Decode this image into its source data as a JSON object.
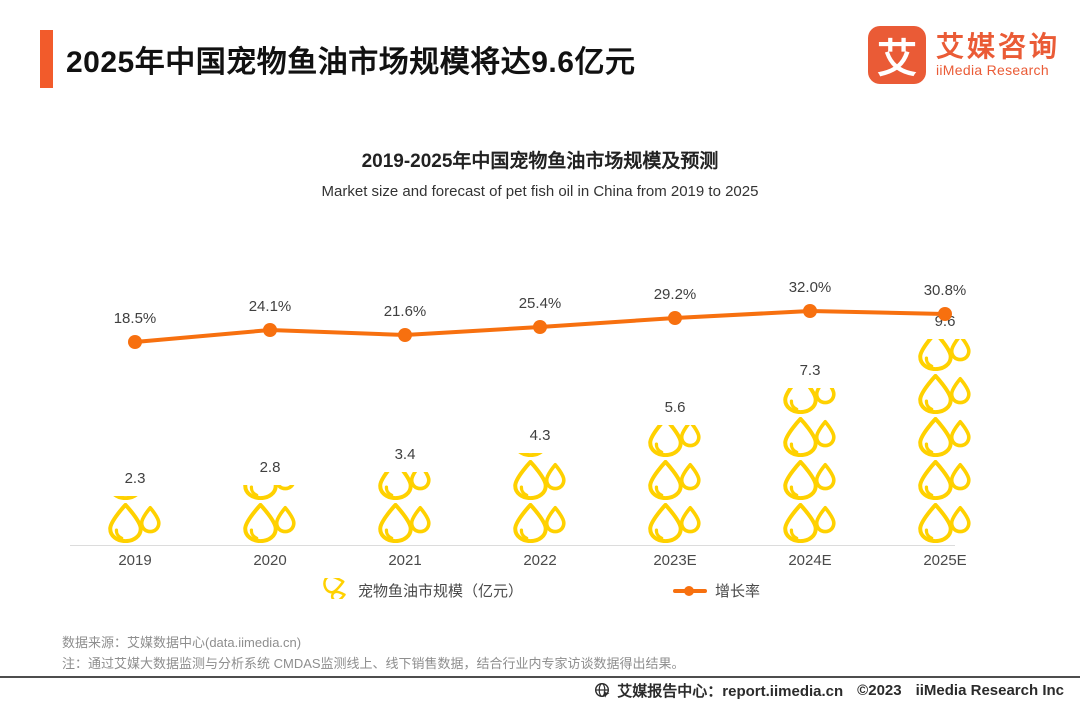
{
  "header": {
    "title": "2025年中国宠物鱼油市场规模将达9.6亿元"
  },
  "logo": {
    "glyph": "艾",
    "name_cn": "艾媒咨询",
    "name_en": "iiMedia Research"
  },
  "chart_data": {
    "type": "bar",
    "combo_note": "pictogram bar (oil-drop icons) + growth-rate line",
    "title": "2019-2025年中国宠物鱼油市场规模及预测",
    "subtitle": "Market size and forecast of pet fish oil in China from 2019 to 2025",
    "categories": [
      "2019",
      "2020",
      "2021",
      "2022",
      "2023E",
      "2024E",
      "2025E"
    ],
    "series": [
      {
        "name": "宠物鱼油市规模（亿元）",
        "type": "pictogram-bar",
        "unit": "亿元",
        "values": [
          2.3,
          2.8,
          3.4,
          4.3,
          5.6,
          7.3,
          9.6
        ]
      },
      {
        "name": "增长率",
        "type": "line",
        "unit": "%",
        "values": [
          18.5,
          24.1,
          21.6,
          25.4,
          29.2,
          32.0,
          30.8
        ]
      }
    ],
    "legend_position": "bottom",
    "grid": false
  },
  "legend": {
    "market_size": "宠物鱼油市规模（亿元）",
    "growth": "增长率"
  },
  "footnotes": {
    "source": "数据来源：艾媒数据中心(data.iimedia.cn)",
    "note": "注：通过艾媒大数据监测与分析系统 CMDAS监测线上、线下销售数据，结合行业内专家访谈数据得出结果。"
  },
  "footer": {
    "center": "艾媒报告中心：report.iimedia.cn",
    "copyright": "©2023",
    "company": "iiMedia Research Inc"
  },
  "colors": {
    "accent_orange": "#F25B2B",
    "logo_orange": "#EA5B36",
    "line_orange": "#F7700F",
    "droplet_yellow": "#FFD100"
  }
}
